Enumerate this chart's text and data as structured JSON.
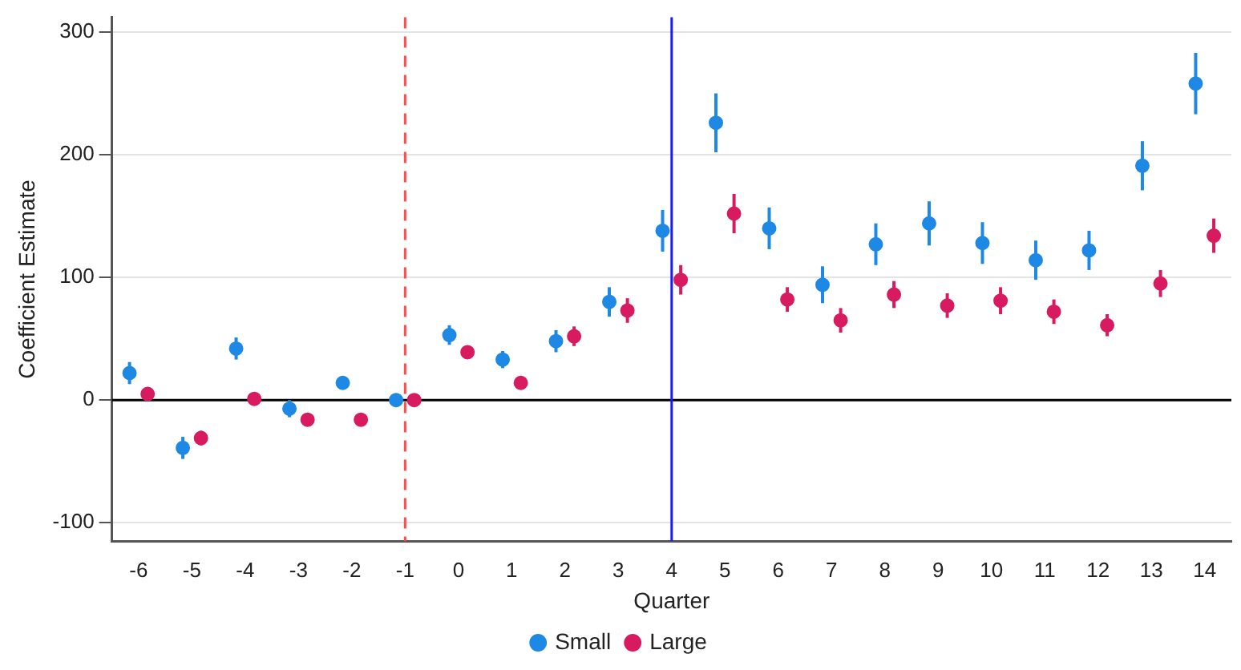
{
  "chart_data": {
    "type": "scatter",
    "xlabel": "Quarter",
    "ylabel": "Coefficient Estimate",
    "xlim": [
      -6.5,
      14.5
    ],
    "xticks": [
      -6,
      -5,
      -4,
      -3,
      -2,
      -1,
      0,
      1,
      2,
      3,
      4,
      5,
      6,
      7,
      8,
      9,
      10,
      11,
      12,
      13,
      14
    ],
    "ylim": [
      -115,
      312
    ],
    "yticks": [
      -100,
      0,
      100,
      200,
      300
    ],
    "grid": "y",
    "legend": "bottom",
    "marker": "circle",
    "series": [
      {
        "name": "Small",
        "color": "#1e88e5",
        "x": [
          -6.17,
          -5.17,
          -4.17,
          -3.17,
          -2.17,
          -1.17,
          -0.17,
          0.83,
          1.83,
          2.83,
          3.83,
          4.83,
          5.83,
          6.83,
          7.83,
          8.83,
          9.83,
          10.83,
          11.83,
          12.83,
          13.83
        ],
        "values": [
          22,
          -39,
          42,
          -7,
          14,
          0,
          53,
          33,
          48,
          80,
          138,
          226,
          140,
          94,
          127,
          144,
          128,
          114,
          122,
          191,
          258
        ],
        "errors": [
          9,
          9,
          9,
          7,
          4,
          0,
          8,
          7,
          9,
          12,
          17,
          24,
          17,
          15,
          17,
          18,
          17,
          16,
          16,
          20,
          25
        ]
      },
      {
        "name": "Large",
        "color": "#d81b60",
        "x": [
          -5.83,
          -4.83,
          -3.83,
          -2.83,
          -1.83,
          -0.83,
          0.17,
          1.17,
          2.17,
          3.17,
          4.17,
          5.17,
          6.17,
          7.17,
          8.17,
          9.17,
          10.17,
          11.17,
          12.17,
          13.17,
          14.17
        ],
        "values": [
          5,
          -31,
          1,
          -16,
          -16,
          0,
          39,
          14,
          52,
          73,
          98,
          152,
          82,
          65,
          86,
          77,
          81,
          72,
          61,
          95,
          134
        ],
        "errors": [
          4,
          6,
          3,
          3,
          3,
          0,
          3,
          3,
          8,
          10,
          12,
          16,
          10,
          10,
          11,
          10,
          11,
          10,
          9,
          11,
          14
        ]
      }
    ],
    "ref_lines": [
      {
        "axis": "y",
        "value": 0,
        "color": "#000000",
        "line_style": "solid"
      },
      {
        "axis": "x",
        "value": -1,
        "color": "#ff4d4d",
        "line_style": "dashed"
      },
      {
        "axis": "x",
        "value": 4,
        "color": "#1a1aff",
        "line_style": "solid"
      }
    ]
  }
}
